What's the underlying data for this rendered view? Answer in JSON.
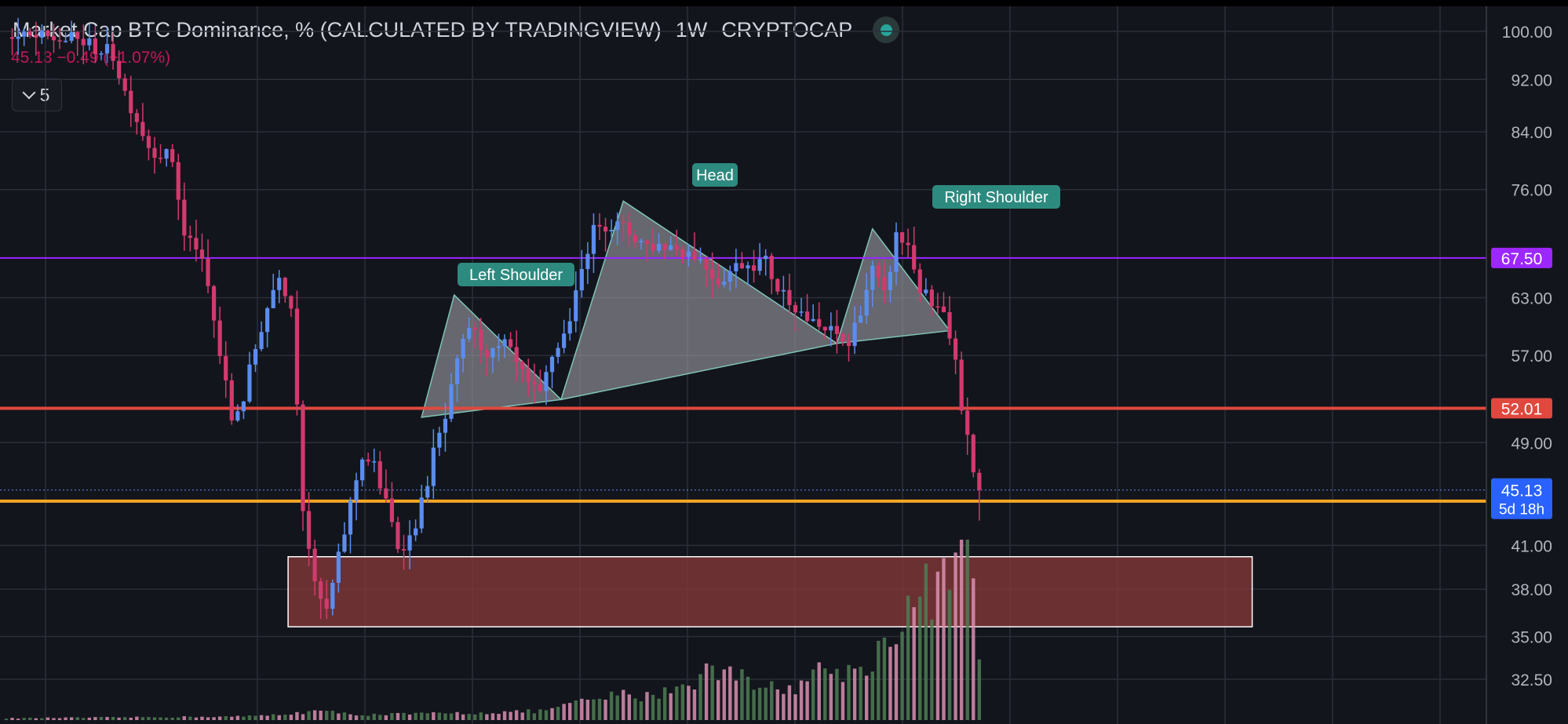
{
  "header": {
    "title": "Market Cap BTC Dominance, % (CALCULATED BY TRADINGVIEW)",
    "interval": "1W",
    "exchange": "CRYPTOCAP",
    "quote": "45.13 −0.49 (−1.07%)",
    "indicator_count": "5"
  },
  "colors": {
    "background": "#13151c",
    "grid": "#2a2e39",
    "up": "#5b8def",
    "down": "#d23a6e",
    "purple_line": "#9c27ff",
    "red_line": "#e0483e",
    "orange_line": "#f5a623",
    "zone_fill": "#8a3a3a",
    "pattern_fill": "#9e9ea6",
    "label_bg": "#2d8a7f",
    "volume_up": "#4f7d53",
    "volume_down": "#d98fb0"
  },
  "chart_data": {
    "type": "candlestick",
    "title": "Market Cap BTC Dominance, % (CALCULATED BY TRADINGVIEW)",
    "y_scale": "log",
    "y_ticks": [
      "100.00",
      "92.00",
      "84.00",
      "76.00",
      "63.00",
      "57.00",
      "52.00",
      "49.00",
      "41.00",
      "38.00",
      "35.00",
      "32.50"
    ],
    "price_path": [
      [
        0,
        99
      ],
      [
        12,
        98.5
      ],
      [
        18,
        96
      ],
      [
        20,
        90
      ],
      [
        24,
        82
      ],
      [
        28,
        80
      ],
      [
        30,
        70
      ],
      [
        32,
        69
      ],
      [
        34,
        64
      ],
      [
        36,
        57
      ],
      [
        38,
        51
      ],
      [
        40,
        53
      ],
      [
        43,
        60
      ],
      [
        46,
        66
      ],
      [
        48,
        62
      ],
      [
        50,
        44
      ],
      [
        52,
        38
      ],
      [
        54,
        36.5
      ],
      [
        56,
        40
      ],
      [
        58,
        44
      ],
      [
        60,
        48
      ],
      [
        62,
        47
      ],
      [
        64,
        44
      ],
      [
        66,
        41
      ],
      [
        68,
        41.5
      ],
      [
        70,
        44
      ],
      [
        72,
        48
      ],
      [
        74,
        51
      ],
      [
        76,
        56
      ],
      [
        78,
        60
      ],
      [
        80,
        58
      ],
      [
        82,
        57
      ],
      [
        84,
        58
      ],
      [
        86,
        56
      ],
      [
        88,
        54
      ],
      [
        90,
        53
      ],
      [
        92,
        57
      ],
      [
        94,
        59
      ],
      [
        96,
        63
      ],
      [
        98,
        69
      ],
      [
        100,
        72
      ],
      [
        104,
        71
      ],
      [
        108,
        69
      ],
      [
        112,
        69
      ],
      [
        116,
        68
      ],
      [
        120,
        65
      ],
      [
        124,
        67
      ],
      [
        128,
        67
      ],
      [
        130,
        64
      ],
      [
        132,
        63
      ],
      [
        136,
        60
      ],
      [
        140,
        59
      ],
      [
        142,
        58
      ],
      [
        144,
        62
      ],
      [
        146,
        66
      ],
      [
        148,
        63
      ],
      [
        150,
        70
      ],
      [
        152,
        69
      ],
      [
        154,
        64
      ],
      [
        156,
        62
      ],
      [
        158,
        61
      ],
      [
        159,
        58
      ],
      [
        160,
        56
      ],
      [
        161,
        52
      ],
      [
        162,
        50
      ],
      [
        163,
        46
      ],
      [
        164,
        45.13
      ]
    ],
    "volume_path": [
      [
        0,
        1
      ],
      [
        40,
        2
      ],
      [
        46,
        3
      ],
      [
        52,
        5
      ],
      [
        56,
        4
      ],
      [
        60,
        3
      ],
      [
        80,
        4
      ],
      [
        90,
        5
      ],
      [
        100,
        12
      ],
      [
        104,
        14
      ],
      [
        108,
        13
      ],
      [
        116,
        22
      ],
      [
        118,
        28
      ],
      [
        122,
        25
      ],
      [
        124,
        30
      ],
      [
        126,
        22
      ],
      [
        130,
        16
      ],
      [
        134,
        20
      ],
      [
        138,
        30
      ],
      [
        142,
        26
      ],
      [
        146,
        34
      ],
      [
        150,
        52
      ],
      [
        154,
        70
      ],
      [
        158,
        75
      ],
      [
        160,
        82
      ],
      [
        162,
        95
      ],
      [
        163,
        100
      ],
      [
        164,
        30
      ]
    ],
    "last_candle": {
      "open": 46.5,
      "high": 46.8,
      "low": 42.8,
      "close": 45.13
    },
    "horizontal_lines": [
      {
        "label": "67.50",
        "color": "purple_line"
      },
      {
        "label": "52.01",
        "color": "red_line"
      },
      {
        "label": "44.27",
        "color": "orange_line"
      }
    ],
    "price_badge": {
      "value": "45.13",
      "countdown": "5d 18h"
    },
    "zone": {
      "top": 40.2,
      "bottom": 35.6,
      "x_from": 47.5,
      "x_to": 210
    },
    "pattern": {
      "left_shoulder": {
        "label": "Left Shoulder",
        "points": [
          [
            70,
            51.2
          ],
          [
            75.5,
            63.3
          ],
          [
            93.5,
            52.8
          ]
        ]
      },
      "head": {
        "label": "Head",
        "points": [
          [
            93.5,
            52.8
          ],
          [
            104,
            74.5
          ],
          [
            140,
            58.2
          ]
        ]
      },
      "right_shoulder": {
        "label": "Right Shoulder",
        "points": [
          [
            140,
            58.2
          ],
          [
            146,
            71
          ],
          [
            159,
            59.5
          ]
        ]
      }
    }
  }
}
